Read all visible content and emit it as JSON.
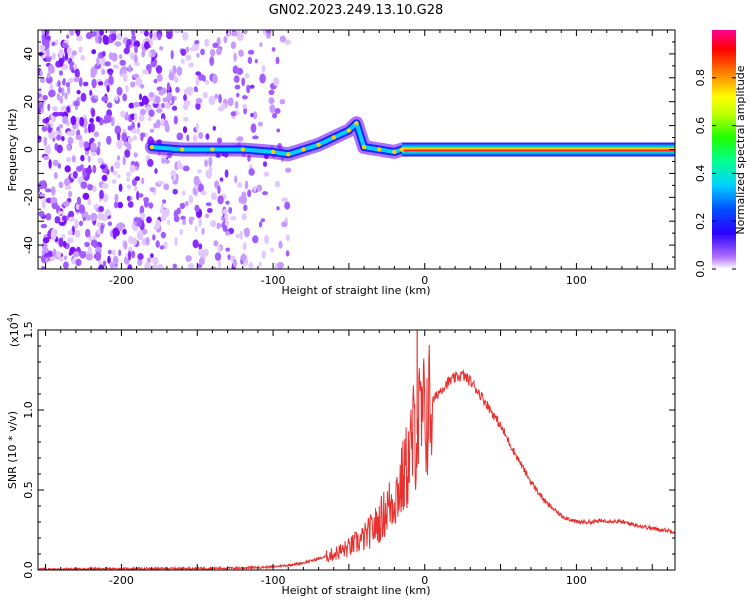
{
  "title": "GN02.2023.249.13.10.G28",
  "chart_data": [
    {
      "type": "heatmap",
      "xlabel": "Height of straight line (km)",
      "ylabel": "Frequency (Hz)",
      "xlim": [
        -255,
        165
      ],
      "ylim": [
        -50,
        50
      ],
      "xticks": [
        -200,
        -100,
        0,
        100
      ],
      "yticks": [
        -40,
        -20,
        0,
        20,
        40
      ],
      "grid": false,
      "colorbar": {
        "label": "Normalized spectral amplitude",
        "range": [
          0,
          1
        ],
        "ticks": [
          "0.0",
          "0.2",
          "0.4",
          "0.6",
          "0.8"
        ]
      },
      "noise_region_km": [
        -255,
        -90
      ],
      "signal_track": [
        {
          "x": -180,
          "y": 1
        },
        {
          "x": -160,
          "y": 0
        },
        {
          "x": -140,
          "y": 0
        },
        {
          "x": -120,
          "y": 0
        },
        {
          "x": -100,
          "y": -1
        },
        {
          "x": -90,
          "y": -2
        },
        {
          "x": -80,
          "y": 0
        },
        {
          "x": -70,
          "y": 2
        },
        {
          "x": -60,
          "y": 5
        },
        {
          "x": -50,
          "y": 8
        },
        {
          "x": -45,
          "y": 11
        },
        {
          "x": -40,
          "y": 1
        },
        {
          "x": -30,
          "y": 0
        },
        {
          "x": -20,
          "y": -1
        },
        {
          "x": -15,
          "y": 0
        },
        {
          "x": 0,
          "y": 0
        },
        {
          "x": 50,
          "y": 0
        },
        {
          "x": 100,
          "y": 0
        },
        {
          "x": 165,
          "y": 0
        }
      ]
    },
    {
      "type": "line",
      "xlabel": "Height of straight line (km)",
      "ylabel": "SNR (10 * v/v)",
      "scale_label": "(x10",
      "scale_exp": "4",
      "scale_close": ")",
      "xlim": [
        -255,
        165
      ],
      "ylim": [
        0,
        1.5
      ],
      "xticks": [
        -200,
        -100,
        0,
        100
      ],
      "yticks": [
        "0.0",
        "0.5",
        "1.0",
        "1.5"
      ],
      "grid": false,
      "color": "#e8312f",
      "series": [
        {
          "x": [
            -255,
            -200,
            -150,
            -120,
            -100,
            -90,
            -80,
            -70,
            -60,
            -50,
            -45,
            -40,
            -35,
            -30,
            -25,
            -20,
            -15,
            -10,
            -7,
            -5,
            0,
            5,
            10,
            15,
            20,
            25,
            30,
            35,
            40,
            50,
            60,
            70,
            80,
            90,
            100,
            110,
            120,
            130,
            140,
            150,
            165
          ],
          "y": [
            0.005,
            0.008,
            0.01,
            0.013,
            0.02,
            0.03,
            0.045,
            0.07,
            0.1,
            0.14,
            0.17,
            0.2,
            0.25,
            0.3,
            0.38,
            0.45,
            0.55,
            0.7,
            0.85,
            0.9,
            0.95,
            1.05,
            1.12,
            1.17,
            1.2,
            1.22,
            1.18,
            1.12,
            1.05,
            0.9,
            0.72,
            0.55,
            0.42,
            0.34,
            0.3,
            0.3,
            0.31,
            0.3,
            0.28,
            0.26,
            0.24
          ]
        }
      ],
      "annotation_peak": {
        "x": -5,
        "y": 1.5
      }
    }
  ]
}
